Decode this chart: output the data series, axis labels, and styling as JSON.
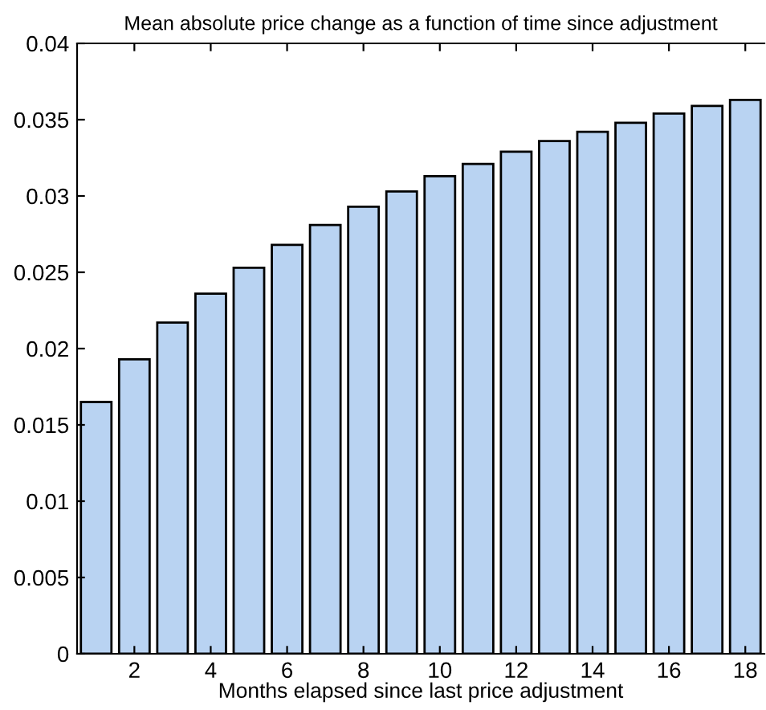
{
  "chart_data": {
    "type": "bar",
    "title": "Mean absolute price change as a function of time since adjustment",
    "xlabel": "Months elapsed since last price adjustment",
    "x": [
      1,
      2,
      3,
      4,
      5,
      6,
      7,
      8,
      9,
      10,
      11,
      12,
      13,
      14,
      15,
      16,
      17,
      18
    ],
    "values": [
      0.0165,
      0.0193,
      0.0217,
      0.0236,
      0.0253,
      0.0268,
      0.0281,
      0.0293,
      0.0303,
      0.0313,
      0.0321,
      0.0329,
      0.0336,
      0.0342,
      0.0348,
      0.0354,
      0.0359,
      0.0363
    ],
    "color": "#b9d3f2",
    "xlim": [
      0.5,
      18.5
    ],
    "xticks": [
      2,
      4,
      6,
      8,
      10,
      12,
      14,
      16,
      18
    ],
    "ylim": [
      0,
      0.04
    ],
    "yticks": [
      0,
      0.005,
      0.01,
      0.015,
      0.02,
      0.025,
      0.03,
      0.035,
      0.04
    ],
    "grid": false
  }
}
